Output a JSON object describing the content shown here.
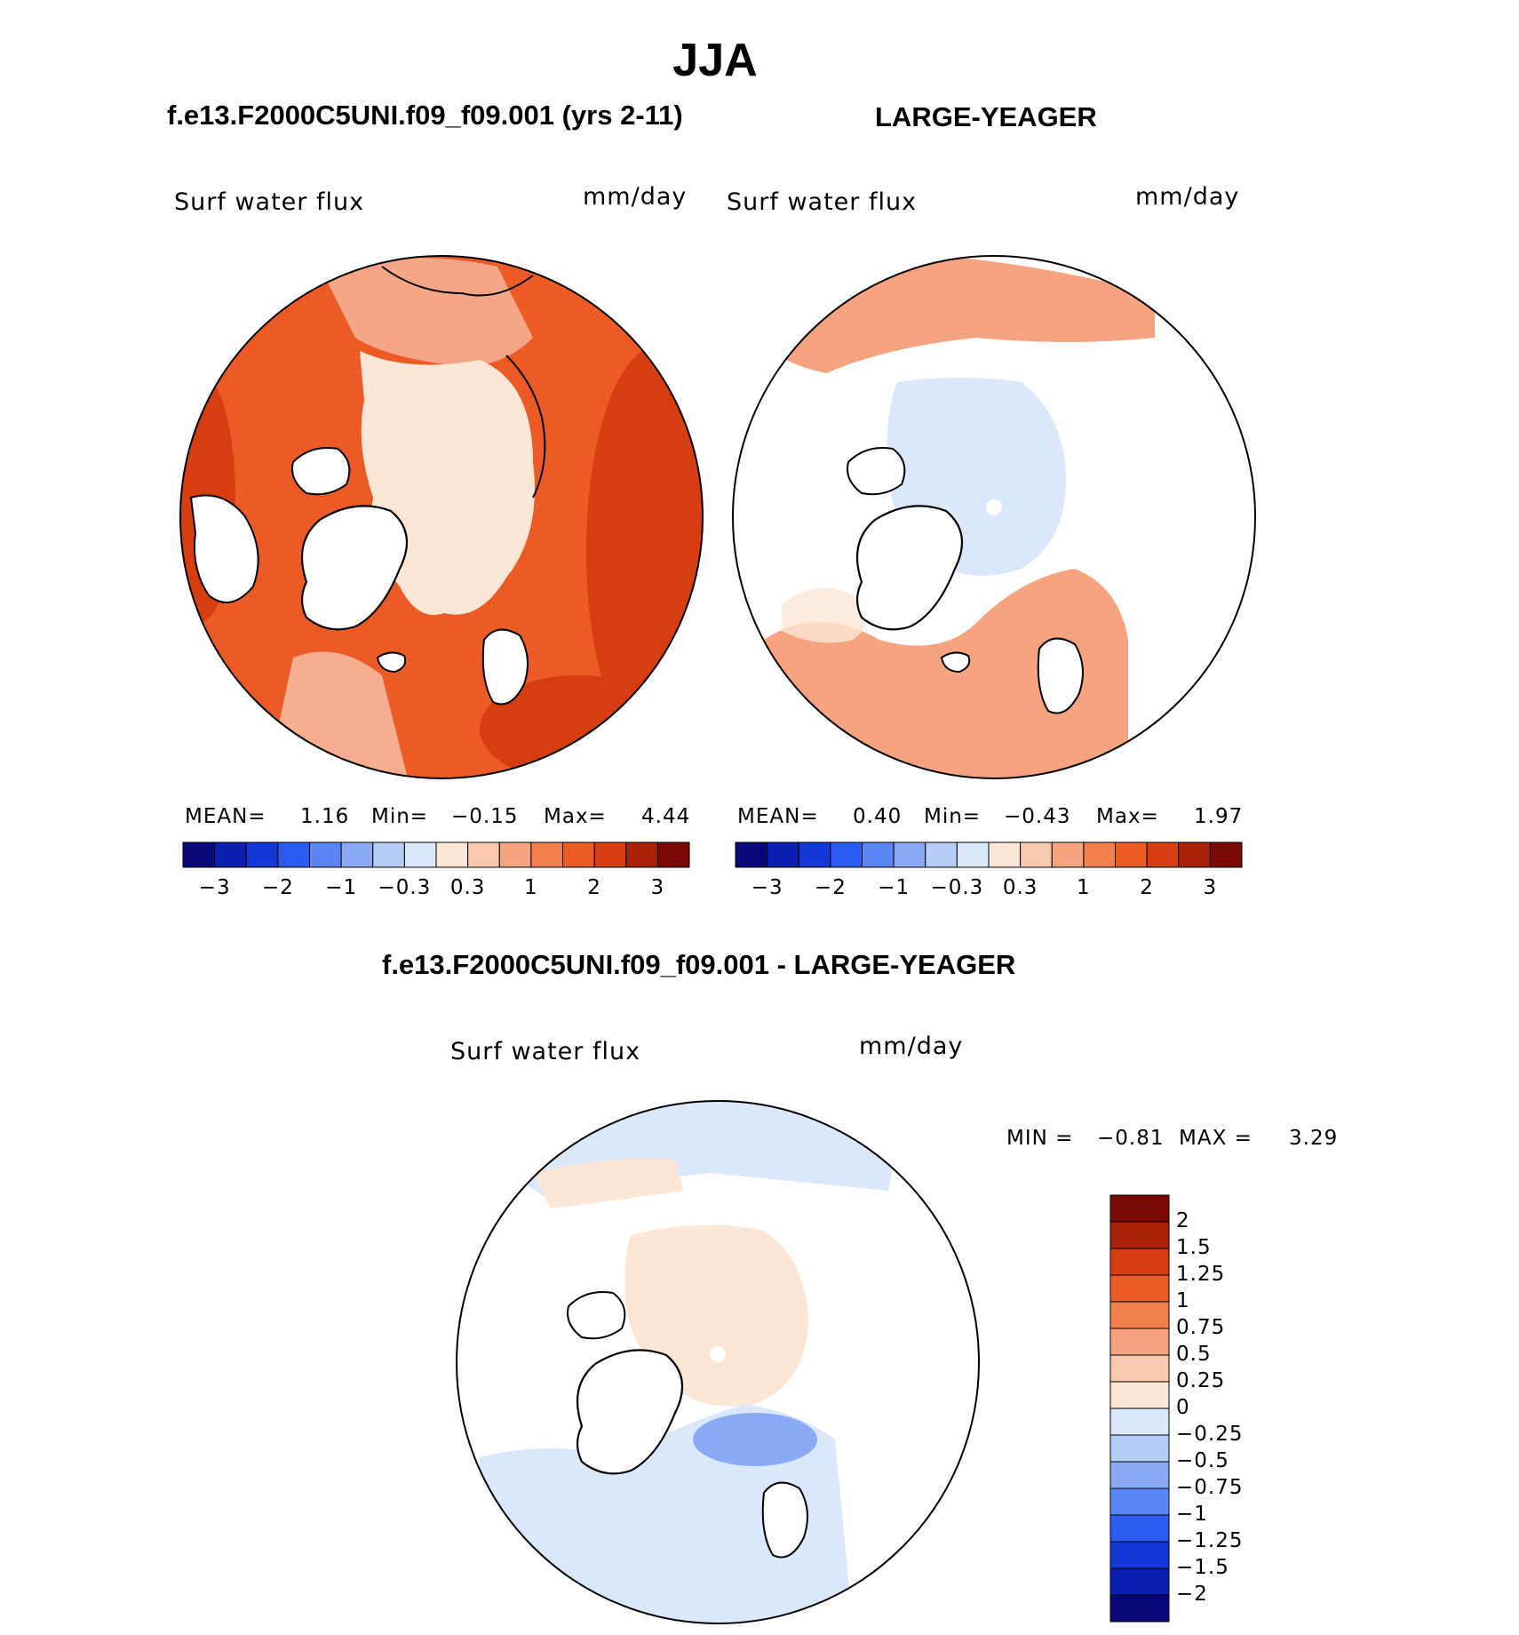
{
  "title": "JJA",
  "panels": [
    {
      "id": "model",
      "case_title": "f.e13.F2000C5UNI.f09_f09.001 (yrs 2-11)",
      "variable": "Surf water flux",
      "units": "mm/day",
      "stats_text": [
        "MEAN=",
        "1.16",
        "Min=",
        "−0.15",
        "Max=",
        "4.44"
      ],
      "mean": 1.16,
      "min": -0.15,
      "max": 4.44
    },
    {
      "id": "obs",
      "case_title": "LARGE-YEAGER",
      "variable": "Surf water flux",
      "units": "mm/day",
      "stats_text": [
        "MEAN=",
        "0.40",
        "Min=",
        "−0.43",
        "Max=",
        "1.97"
      ],
      "mean": 0.4,
      "min": -0.43,
      "max": 1.97
    },
    {
      "id": "diff",
      "case_title": "f.e13.F2000C5UNI.f09_f09.001 - LARGE-YEAGER",
      "variable": "Surf water flux",
      "units": "mm/day",
      "stats_text": [
        "MIN =",
        "−0.81",
        "MAX =",
        "3.29"
      ],
      "min": -0.81,
      "max": 3.29
    }
  ],
  "abs_colorbar": {
    "orientation": "horizontal",
    "colors": [
      "#08087a",
      "#0a1fb0",
      "#1438d8",
      "#2a5cf2",
      "#5a86f5",
      "#8aaaf5",
      "#b6cdf7",
      "#dbe8fb",
      "#fce6d6",
      "#f8c9ae",
      "#f5a47f",
      "#f2804f",
      "#ec5a26",
      "#d63d10",
      "#a82108",
      "#7a0805"
    ],
    "tick_labels": [
      "−3",
      "−2",
      "−1",
      "−0.3",
      "0.3",
      "1",
      "2",
      "3"
    ]
  },
  "diff_colorbar": {
    "orientation": "vertical",
    "colors": [
      "#7a0805",
      "#a82108",
      "#d63d10",
      "#ec5a26",
      "#f2804f",
      "#f5a47f",
      "#f8c9ae",
      "#fce6d6",
      "#dbe8fb",
      "#b6cdf7",
      "#8aaaf5",
      "#5a86f5",
      "#2a5cf2",
      "#1438d8",
      "#0a1fb0",
      "#08087a"
    ],
    "tick_labels": [
      "2",
      "1.5",
      "1.25",
      "1",
      "0.75",
      "0.5",
      "0.25",
      "0",
      "−0.25",
      "−0.5",
      "−0.75",
      "−1",
      "−1.25",
      "−1.5",
      "−2"
    ]
  },
  "map_colors": {
    "land": "#ffffff",
    "coast": "#000000",
    "model_ocean": "#ec5a26",
    "model_ocean_dark": "#d63d10",
    "model_arctic": "#fce6d6",
    "obs_ocean": "#f5a47f",
    "obs_arctic": "#dbe8fb",
    "diff_ocean": "#dbe8fb",
    "diff_arctic": "#fce6d6"
  }
}
